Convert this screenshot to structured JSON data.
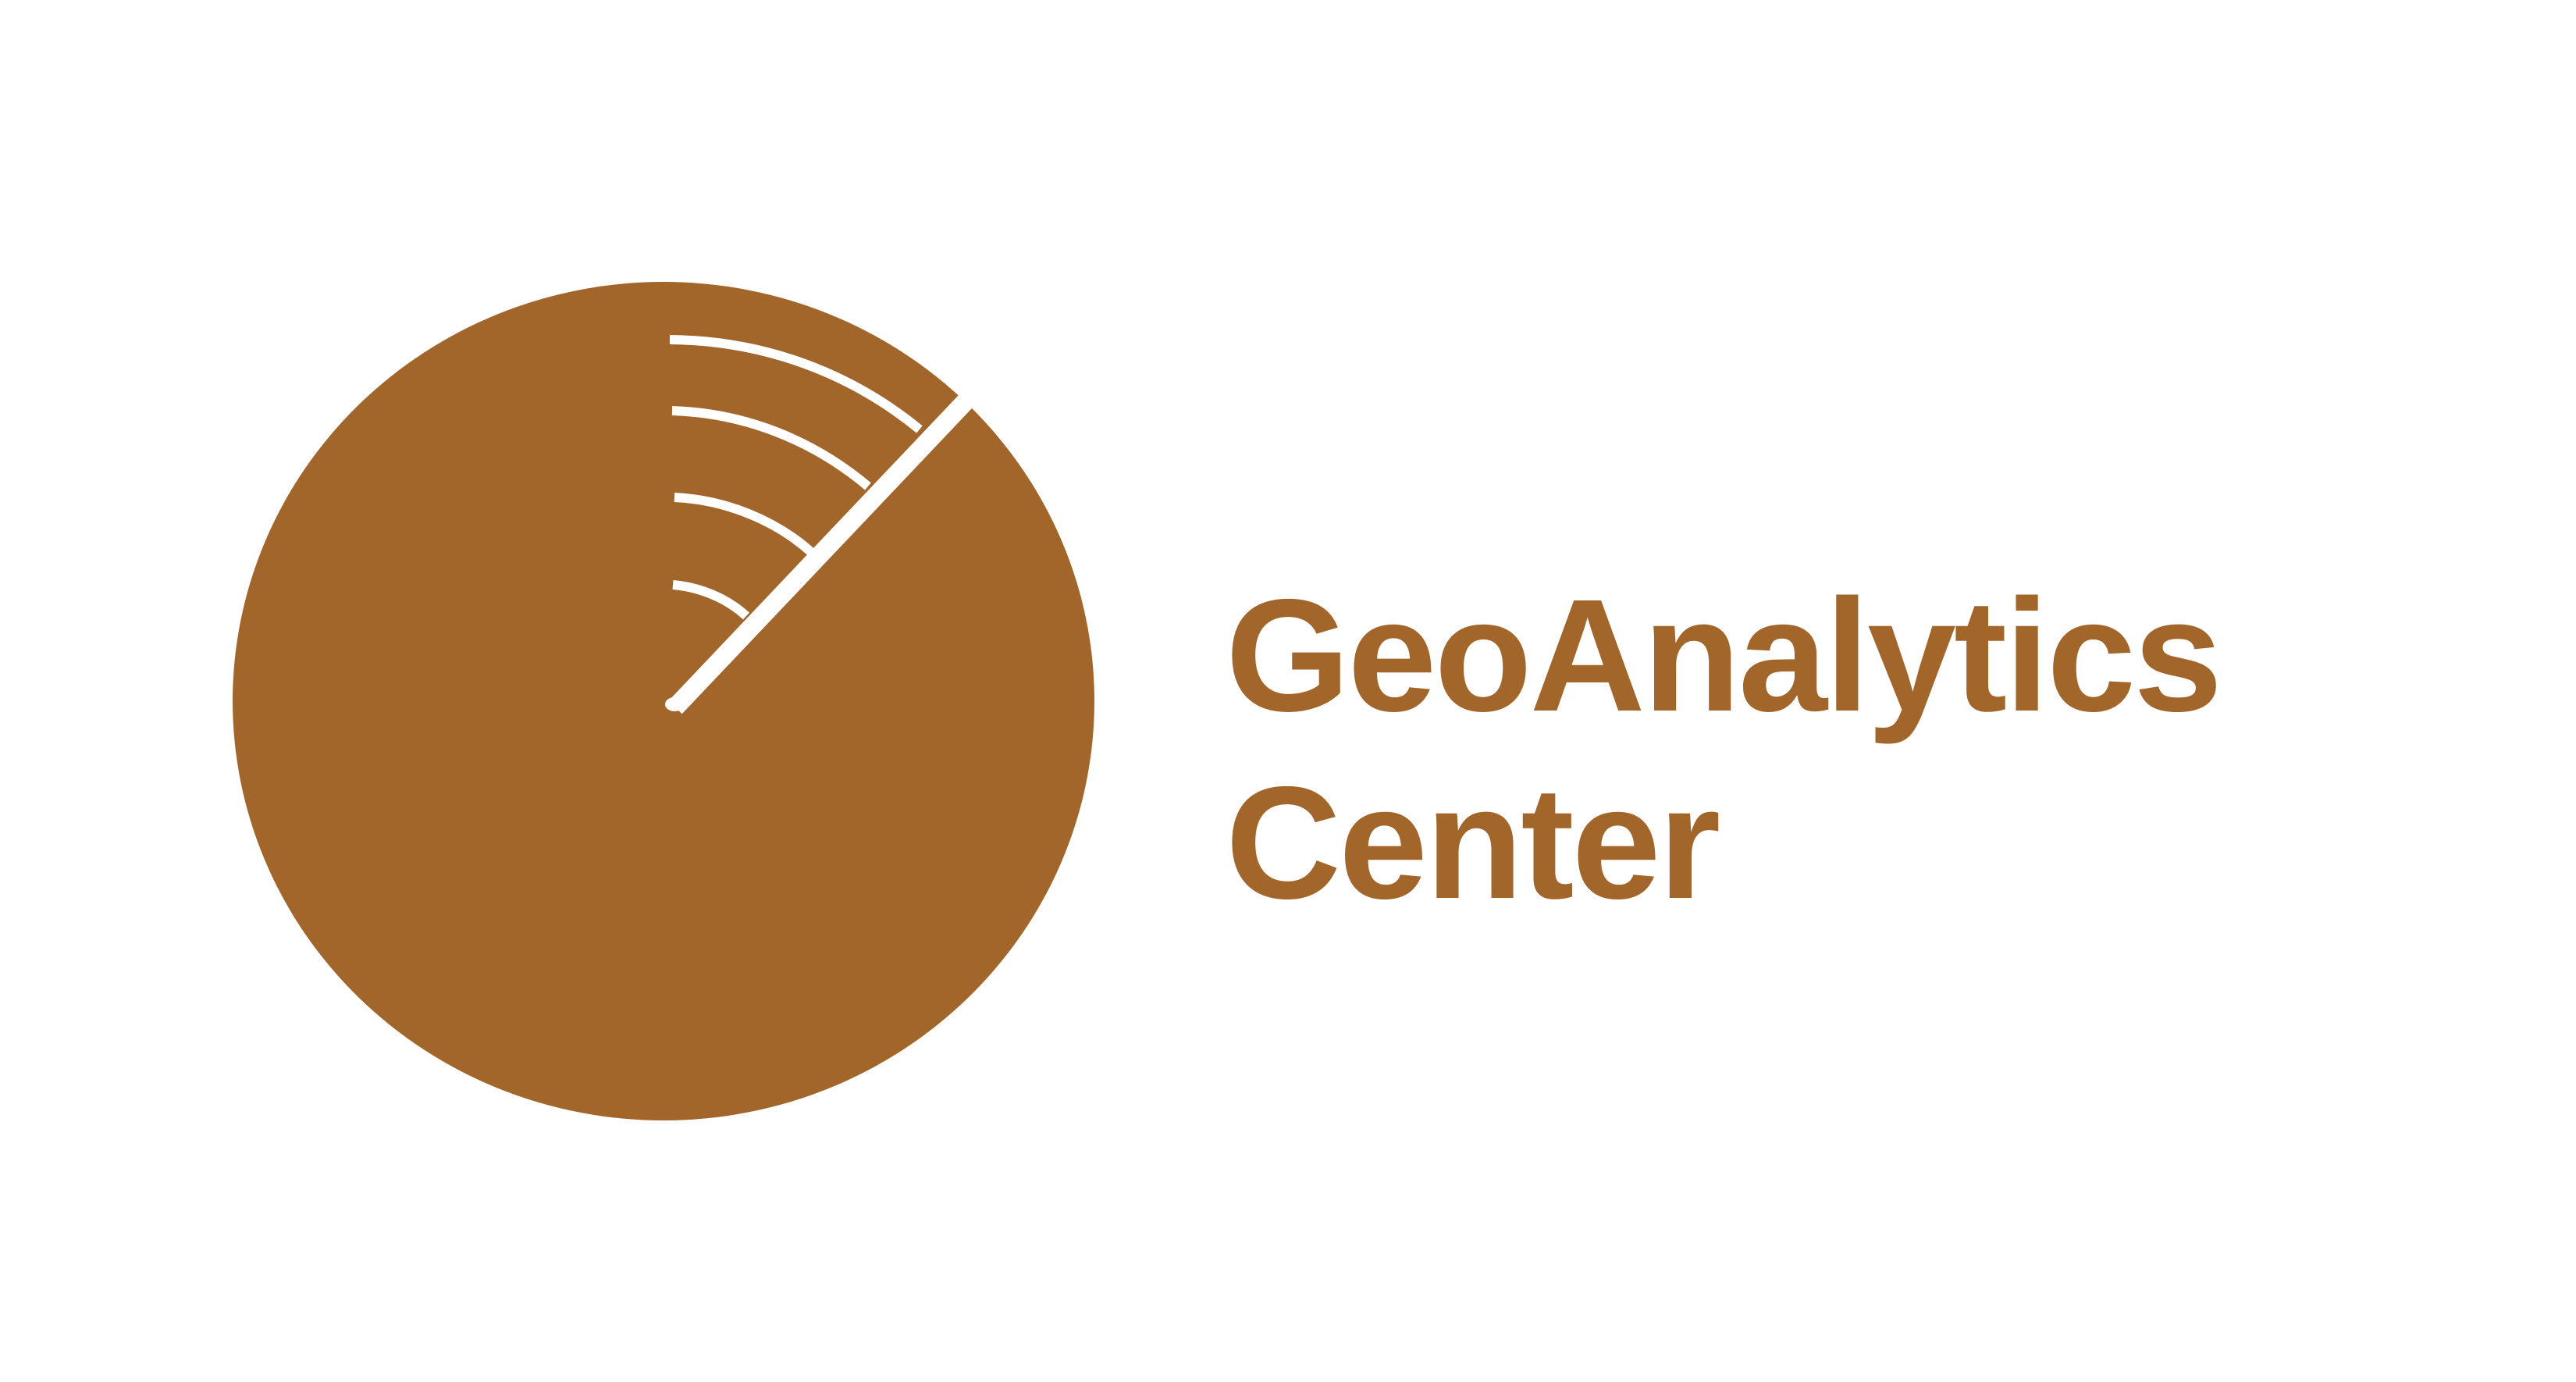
{
  "logo": {
    "name_line_1": "GeoAnalytics",
    "name_line_2": "Center",
    "brand_color": "#A2652A",
    "background_color": "#FFFFFF",
    "mark_icon": "radar-sweep-icon"
  }
}
